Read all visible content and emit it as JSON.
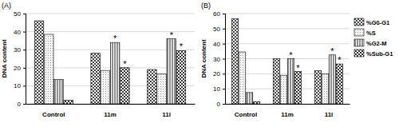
{
  "chart_data": [
    {
      "type": "bar",
      "title": "(A)",
      "y_label": "DNA content",
      "categories": [
        "Control",
        "11m",
        "11l"
      ],
      "series": [
        {
          "name": "%G0-G1",
          "color": "#444444",
          "values": [
            46,
            28,
            19
          ]
        },
        {
          "name": "%S",
          "color": "#888888",
          "values": [
            38.5,
            18.5,
            16.5
          ]
        },
        {
          "name": "%G2-M",
          "color": "#222222",
          "values": [
            13.5,
            34,
            36
          ]
        },
        {
          "name": "%Sub-G1",
          "color": "#333333",
          "values": [
            2,
            20,
            29.5
          ]
        }
      ],
      "ylim": [
        0,
        50
      ],
      "yticks": [
        0,
        10,
        20,
        30,
        40,
        50
      ],
      "grid": true,
      "annotations": [
        {
          "text": "*",
          "category": "11m",
          "series": "%G2-M"
        },
        {
          "text": "*",
          "category": "11m",
          "series": "%Sub-G1"
        },
        {
          "text": "*",
          "category": "11l",
          "series": "%G2-M"
        },
        {
          "text": "*",
          "category": "11l",
          "series": "%Sub-G1"
        }
      ]
    },
    {
      "type": "bar",
      "title": "(B)",
      "y_label": "DNA content",
      "categories": [
        "Control",
        "11m",
        "11l"
      ],
      "series": [
        {
          "name": "%G0-G1",
          "color": "#444444",
          "values": [
            56.5,
            30,
            22
          ]
        },
        {
          "name": "%S",
          "color": "#888888",
          "values": [
            34.5,
            19,
            20
          ]
        },
        {
          "name": "%G2-M",
          "color": "#222222",
          "values": [
            7.5,
            30,
            32.5
          ]
        },
        {
          "name": "%Sub-G1",
          "color": "#333333",
          "values": [
            1.5,
            21.5,
            26.5
          ]
        }
      ],
      "ylim": [
        0,
        60
      ],
      "yticks": [
        0,
        10,
        20,
        30,
        40,
        50,
        60
      ],
      "grid": true,
      "legend": "right",
      "annotations": [
        {
          "text": "*",
          "category": "11m",
          "series": "%G2-M"
        },
        {
          "text": "*",
          "category": "11m",
          "series": "%Sub-G1"
        },
        {
          "text": "*",
          "category": "11l",
          "series": "%G2-M"
        },
        {
          "text": "*",
          "category": "11l",
          "series": "%Sub-G1"
        }
      ]
    }
  ]
}
